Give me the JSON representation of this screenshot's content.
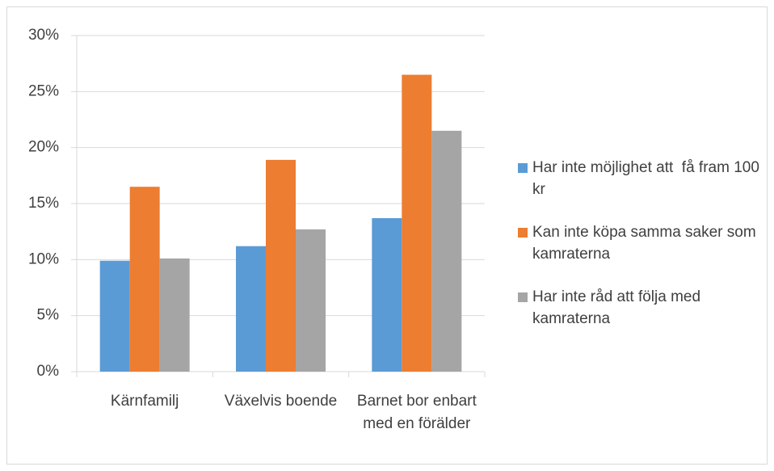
{
  "chart_data": {
    "type": "bar",
    "categories": [
      "Kärnfamilj",
      "Växelvis boende",
      "Barnet bor enbart med en förälder"
    ],
    "series": [
      {
        "name": "Har inte möjlighet att  få fram 100 kr",
        "color": "#5b9bd5",
        "values": [
          9.9,
          11.2,
          13.7
        ]
      },
      {
        "name": "Kan inte köpa samma saker som kamraterna",
        "color": "#ed7d31",
        "values": [
          16.5,
          18.9,
          26.5
        ]
      },
      {
        "name": "Har inte råd att följa med kamraterna",
        "color": "#a5a5a5",
        "values": [
          10.1,
          12.7,
          21.5
        ]
      }
    ],
    "ylim": [
      0,
      30
    ],
    "yticks": [
      {
        "value": 0,
        "label": "0%"
      },
      {
        "value": 5,
        "label": "5%"
      },
      {
        "value": 10,
        "label": "10%"
      },
      {
        "value": 15,
        "label": "15%"
      },
      {
        "value": 20,
        "label": "20%"
      },
      {
        "value": 25,
        "label": "25%"
      },
      {
        "value": 30,
        "label": "30%"
      }
    ],
    "grid": true,
    "legend": "right"
  }
}
